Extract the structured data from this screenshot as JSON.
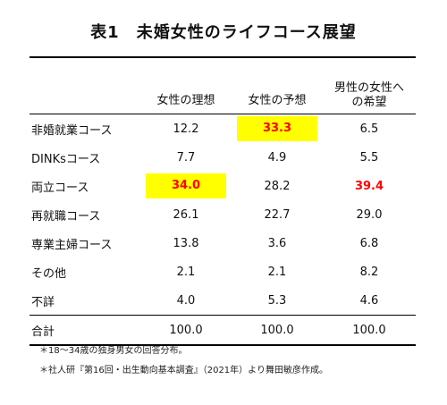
{
  "title": "表1　未婚女性のライフコース展望",
  "table": {
    "headers": [
      "",
      "女性の理想",
      "女性の予想",
      "男性の女性への希望"
    ],
    "header3_line1": "男性の女性へ",
    "header3_line2": "の希望",
    "rows": [
      {
        "label": "非婚就業コース",
        "values": [
          "12.2",
          "33.3",
          "6.5"
        ]
      },
      {
        "label": "DINKsコース",
        "values": [
          "7.7",
          "4.9",
          "5.5"
        ]
      },
      {
        "label": "両立コース",
        "values": [
          "34.0",
          "28.2",
          "39.4"
        ]
      },
      {
        "label": "再就職コース",
        "values": [
          "26.1",
          "22.7",
          "29.0"
        ]
      },
      {
        "label": "専業主婦コース",
        "values": [
          "13.8",
          "3.6",
          "6.8"
        ]
      },
      {
        "label": "その他",
        "values": [
          "2.1",
          "2.1",
          "8.2"
        ]
      },
      {
        "label": "不詳",
        "values": [
          "4.0",
          "5.3",
          "4.6"
        ]
      }
    ],
    "total": {
      "label": "合計",
      "values": [
        "100.0",
        "100.0",
        "100.0"
      ]
    }
  },
  "colors": {
    "highlight_bg": "#ffff00",
    "highlight_text": "#ff0000"
  },
  "notes": [
    "＊18～34歳の独身男女の回答分布。",
    "＊社人研『第16回・出生動向基本調査』（2021年）より舞田敏彦作成。"
  ]
}
